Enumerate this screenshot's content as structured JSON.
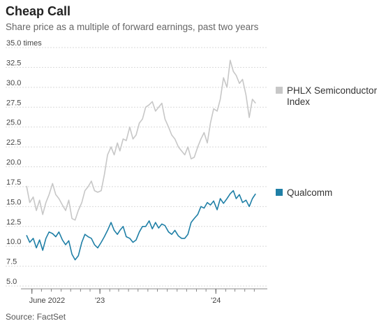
{
  "header": {
    "title": "Cheap Call",
    "subtitle": "Share price as a multiple of forward earnings, past two years"
  },
  "footer": {
    "source": "Source: FactSet"
  },
  "colors": {
    "phlx": "#c7c7c7",
    "qualcomm": "#1f7fa6",
    "grid": "#d9d9d9",
    "axis": "#888888"
  },
  "chart_data": {
    "type": "line",
    "title": "Cheap Call",
    "subtitle": "Share price as a multiple of forward earnings, past two years",
    "ylim": [
      5.0,
      35.0
    ],
    "y_ticks": [
      5.0,
      7.5,
      10.0,
      12.5,
      15.0,
      17.5,
      20.0,
      22.5,
      25.0,
      27.5,
      30.0,
      32.5,
      35.0
    ],
    "y_tick_labels": [
      "5.0",
      "7.5",
      "10.0",
      "12.5",
      "15.0",
      "17.5",
      "20.0",
      "22.5",
      "25.0",
      "27.5",
      "30.0",
      "32.5",
      "35.0 times"
    ],
    "x_ticks": [
      {
        "date": "2022-06-01",
        "label": "June 2022"
      },
      {
        "date": "2023-01-01",
        "label": "'23"
      },
      {
        "date": "2024-01-01",
        "label": "'24"
      }
    ],
    "xlim": [
      "2022-05-15",
      "2024-05-31"
    ],
    "legend": "right",
    "series": [
      {
        "name": "PHLX Semiconductor Index",
        "legend_lines": [
          "PHLX Semiconductor",
          "Index"
        ],
        "color": "#c7c7c7",
        "x": [
          "2022-05-15",
          "2022-05-25",
          "2022-06-05",
          "2022-06-15",
          "2022-06-25",
          "2022-07-05",
          "2022-07-15",
          "2022-07-25",
          "2022-08-05",
          "2022-08-15",
          "2022-08-25",
          "2022-09-05",
          "2022-09-15",
          "2022-09-25",
          "2022-10-05",
          "2022-10-15",
          "2022-10-25",
          "2022-11-05",
          "2022-11-15",
          "2022-11-25",
          "2022-12-05",
          "2022-12-15",
          "2022-12-25",
          "2023-01-05",
          "2023-01-15",
          "2023-01-25",
          "2023-02-05",
          "2023-02-15",
          "2023-02-25",
          "2023-03-05",
          "2023-03-15",
          "2023-03-25",
          "2023-04-05",
          "2023-04-15",
          "2023-04-25",
          "2023-05-05",
          "2023-05-15",
          "2023-05-25",
          "2023-06-05",
          "2023-06-15",
          "2023-06-25",
          "2023-07-05",
          "2023-07-15",
          "2023-07-25",
          "2023-08-05",
          "2023-08-15",
          "2023-08-25",
          "2023-09-05",
          "2023-09-15",
          "2023-09-25",
          "2023-10-05",
          "2023-10-15",
          "2023-10-25",
          "2023-11-05",
          "2023-11-15",
          "2023-11-25",
          "2023-12-05",
          "2023-12-15",
          "2023-12-25",
          "2024-01-05",
          "2024-01-15",
          "2024-01-25",
          "2024-02-05",
          "2024-02-15",
          "2024-02-25",
          "2024-03-05",
          "2024-03-15",
          "2024-03-25",
          "2024-04-05",
          "2024-04-15",
          "2024-04-25",
          "2024-05-05"
        ],
        "values": [
          17.6,
          15.5,
          16.2,
          14.5,
          15.8,
          14.0,
          15.5,
          16.5,
          17.9,
          16.5,
          16.0,
          15.2,
          14.5,
          15.8,
          13.5,
          13.3,
          14.5,
          15.5,
          17.0,
          17.5,
          18.2,
          17.0,
          16.8,
          17.0,
          19.0,
          21.5,
          22.5,
          21.5,
          23.0,
          22.0,
          23.5,
          23.3,
          25.0,
          23.5,
          24.0,
          25.5,
          26.0,
          27.5,
          27.8,
          28.2,
          27.0,
          27.5,
          28.0,
          26.0,
          25.0,
          24.0,
          23.5,
          22.5,
          22.0,
          21.5,
          22.5,
          21.0,
          21.2,
          22.5,
          23.5,
          24.3,
          23.0,
          25.5,
          27.3,
          27.0,
          28.5,
          31.2,
          30.0,
          33.4,
          32.0,
          31.5,
          30.5,
          31.0,
          29.0,
          26.2,
          28.5,
          28.0
        ]
      },
      {
        "name": "Qualcomm",
        "legend_lines": [
          "Qualcomm"
        ],
        "color": "#1f7fa6",
        "x": [
          "2022-05-15",
          "2022-05-25",
          "2022-06-05",
          "2022-06-15",
          "2022-06-25",
          "2022-07-05",
          "2022-07-15",
          "2022-07-25",
          "2022-08-05",
          "2022-08-15",
          "2022-08-25",
          "2022-09-05",
          "2022-09-15",
          "2022-09-25",
          "2022-10-05",
          "2022-10-15",
          "2022-10-25",
          "2022-11-05",
          "2022-11-15",
          "2022-11-25",
          "2022-12-05",
          "2022-12-15",
          "2022-12-25",
          "2023-01-05",
          "2023-01-15",
          "2023-01-25",
          "2023-02-05",
          "2023-02-15",
          "2023-02-25",
          "2023-03-05",
          "2023-03-15",
          "2023-03-25",
          "2023-04-05",
          "2023-04-15",
          "2023-04-25",
          "2023-05-05",
          "2023-05-15",
          "2023-05-25",
          "2023-06-05",
          "2023-06-15",
          "2023-06-25",
          "2023-07-05",
          "2023-07-15",
          "2023-07-25",
          "2023-08-05",
          "2023-08-15",
          "2023-08-25",
          "2023-09-05",
          "2023-09-15",
          "2023-09-25",
          "2023-10-05",
          "2023-10-15",
          "2023-10-25",
          "2023-11-05",
          "2023-11-15",
          "2023-11-25",
          "2023-12-05",
          "2023-12-15",
          "2023-12-25",
          "2024-01-05",
          "2024-01-15",
          "2024-01-25",
          "2024-02-05",
          "2024-02-15",
          "2024-02-25",
          "2024-03-05",
          "2024-03-15",
          "2024-03-25",
          "2024-04-05",
          "2024-04-15",
          "2024-04-25",
          "2024-05-05"
        ],
        "values": [
          11.4,
          10.5,
          11.0,
          9.8,
          10.8,
          9.5,
          11.0,
          11.8,
          11.6,
          11.2,
          11.8,
          10.8,
          10.2,
          10.7,
          9.0,
          8.3,
          8.8,
          10.5,
          11.5,
          11.2,
          11.0,
          10.2,
          9.8,
          10.5,
          11.2,
          12.0,
          13.0,
          12.0,
          11.5,
          12.0,
          12.5,
          11.2,
          11.0,
          10.5,
          10.8,
          11.8,
          12.5,
          12.5,
          13.2,
          12.2,
          13.0,
          12.3,
          12.8,
          12.6,
          11.8,
          11.5,
          12.0,
          11.3,
          11.0,
          11.0,
          11.5,
          13.0,
          13.5,
          14.0,
          15.0,
          14.8,
          15.5,
          15.2,
          15.7,
          14.6,
          16.0,
          15.4,
          16.0,
          16.6,
          17.0,
          16.0,
          16.5,
          15.5,
          15.8,
          15.0,
          16.0,
          16.6
        ]
      }
    ]
  }
}
